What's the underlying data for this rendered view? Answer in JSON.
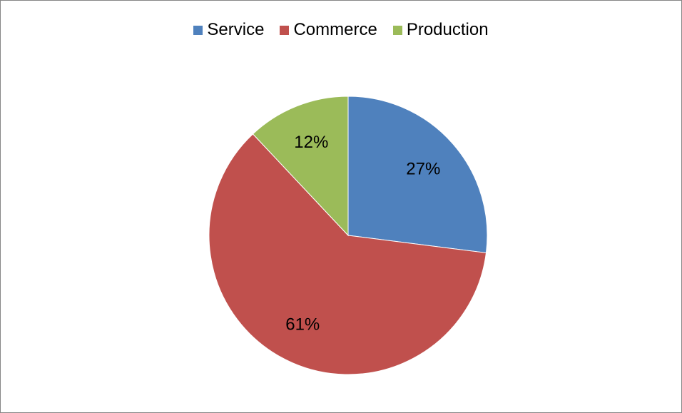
{
  "chart_data": {
    "type": "pie",
    "categories": [
      "Service",
      "Commerce",
      "Production"
    ],
    "values": [
      27,
      61,
      12
    ],
    "labels": [
      "27%",
      "61%",
      "12%"
    ],
    "colors": [
      "#4F81BD",
      "#C0504D",
      "#9BBB59"
    ],
    "title": "",
    "legend": "top",
    "start_angle": "12 o'clock, clockwise"
  }
}
